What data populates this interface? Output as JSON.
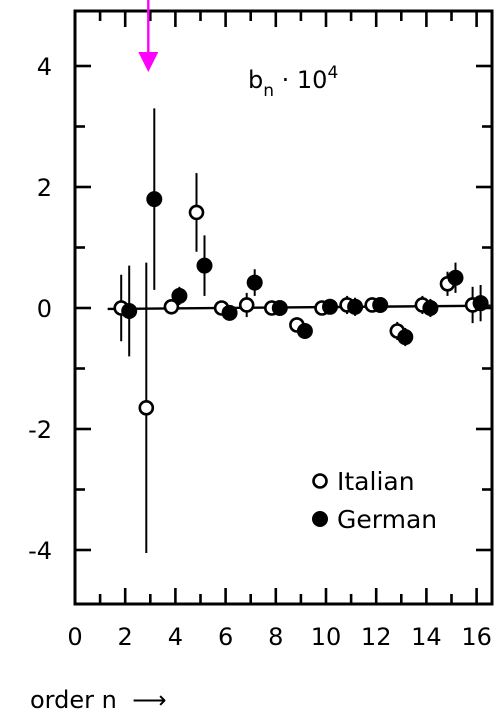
{
  "chart_data": {
    "type": "scatter",
    "title": "",
    "annotation": {
      "base": "b",
      "sub": "n",
      "rest": " · 10",
      "sup": "4"
    },
    "xlabel": "order n",
    "ylabel": "",
    "xlim": [
      0,
      16.6
    ],
    "ylim": [
      -4.9,
      4.95
    ],
    "x_ticks": [
      "0",
      "2",
      "4",
      "6",
      "8",
      "10",
      "12",
      "14",
      "16"
    ],
    "y_ticks": [
      "4",
      "2",
      "0",
      "-2",
      "-4"
    ],
    "marker": {
      "x": 3,
      "color": "#ff00ff"
    },
    "reference_line": {
      "slope": 0.0035,
      "intercept": -0.02
    },
    "legend": {
      "position": "lower-right",
      "entries": [
        "Italian",
        "German"
      ]
    },
    "series": [
      {
        "name": "Italian",
        "style": "open-circle",
        "points": [
          {
            "n": 2,
            "y": 0.0,
            "err": 0.55
          },
          {
            "n": 3,
            "y": -1.65,
            "err": 2.4
          },
          {
            "n": 4,
            "y": 0.02,
            "err": 0.1
          },
          {
            "n": 5,
            "y": 1.58,
            "err": 0.65
          },
          {
            "n": 6,
            "y": 0.0,
            "err": 0.1
          },
          {
            "n": 7,
            "y": 0.05,
            "err": 0.2
          },
          {
            "n": 8,
            "y": 0.0,
            "err": 0.1
          },
          {
            "n": 9,
            "y": -0.28,
            "err": 0.12
          },
          {
            "n": 10,
            "y": 0.0,
            "err": 0.1
          },
          {
            "n": 11,
            "y": 0.05,
            "err": 0.15
          },
          {
            "n": 12,
            "y": 0.05,
            "err": 0.1
          },
          {
            "n": 13,
            "y": -0.38,
            "err": 0.15
          },
          {
            "n": 14,
            "y": 0.05,
            "err": 0.15
          },
          {
            "n": 15,
            "y": 0.4,
            "err": 0.2
          },
          {
            "n": 16,
            "y": 0.05,
            "err": 0.3
          }
        ]
      },
      {
        "name": "German",
        "style": "filled-circle",
        "points": [
          {
            "n": 2,
            "y": -0.05,
            "err": 0.75
          },
          {
            "n": 3,
            "y": 1.8,
            "err": 1.5
          },
          {
            "n": 4,
            "y": 0.2,
            "err": 0.15
          },
          {
            "n": 5,
            "y": 0.7,
            "err": 0.5
          },
          {
            "n": 6,
            "y": -0.08,
            "err": 0.1
          },
          {
            "n": 7,
            "y": 0.42,
            "err": 0.22
          },
          {
            "n": 8,
            "y": 0.0,
            "err": 0.1
          },
          {
            "n": 9,
            "y": -0.38,
            "err": 0.1
          },
          {
            "n": 10,
            "y": 0.02,
            "err": 0.1
          },
          {
            "n": 11,
            "y": 0.02,
            "err": 0.15
          },
          {
            "n": 12,
            "y": 0.05,
            "err": 0.1
          },
          {
            "n": 13,
            "y": -0.48,
            "err": 0.15
          },
          {
            "n": 14,
            "y": 0.0,
            "err": 0.15
          },
          {
            "n": 15,
            "y": 0.5,
            "err": 0.25
          },
          {
            "n": 16,
            "y": 0.08,
            "err": 0.3
          }
        ]
      }
    ]
  }
}
